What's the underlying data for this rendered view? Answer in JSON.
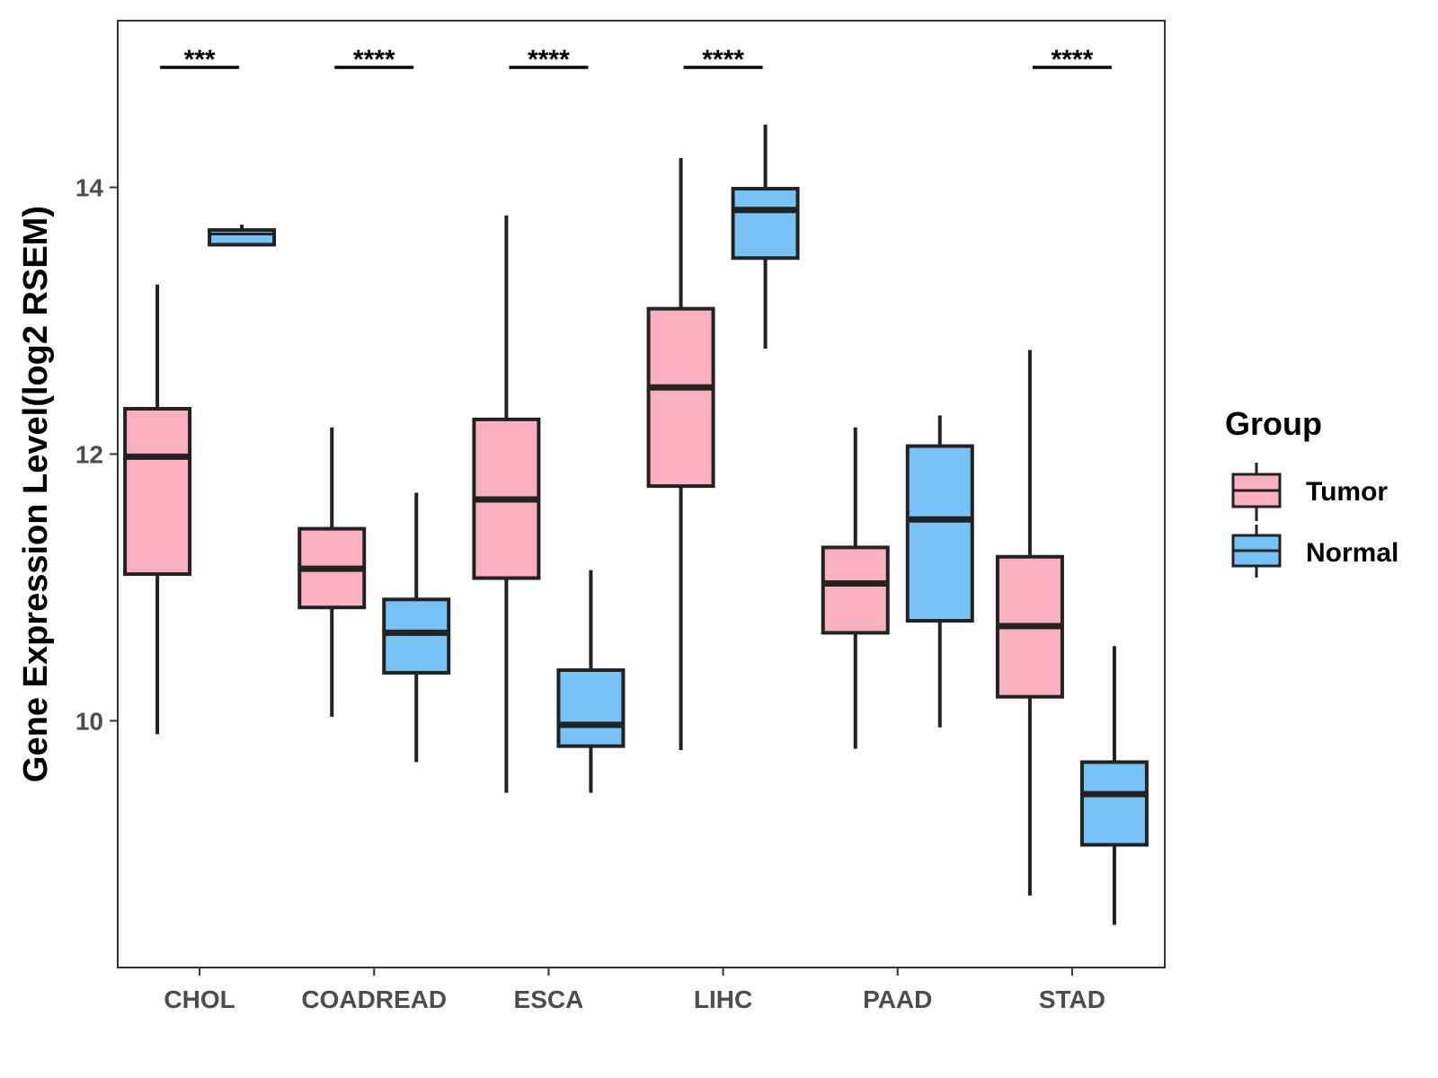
{
  "chart_data": {
    "type": "boxplot",
    "title": "",
    "xlabel": "",
    "ylabel": "Gene Expression Level(log2 RSEM)",
    "ylim": [
      8.15,
      15.25
    ],
    "yticks": [
      10,
      12,
      14
    ],
    "categories": [
      "CHOL",
      "COADREAD",
      "ESCA",
      "LIHC",
      "PAAD",
      "STAD"
    ],
    "legend": {
      "title": "Group",
      "position": "right",
      "entries": [
        "Tumor",
        "Normal"
      ]
    },
    "colors": {
      "Tumor": "#fbb0c2",
      "Normal": "#77c2f7",
      "outline": "#222222"
    },
    "series": [
      {
        "name": "Tumor",
        "boxes": [
          {
            "category": "CHOL",
            "whisker_low": 9.9,
            "q1": 11.1,
            "median": 11.98,
            "q3": 12.34,
            "whisker_high": 13.27
          },
          {
            "category": "COADREAD",
            "whisker_low": 10.03,
            "q1": 10.85,
            "median": 11.14,
            "q3": 11.44,
            "whisker_high": 12.2
          },
          {
            "category": "ESCA",
            "whisker_low": 9.46,
            "q1": 11.07,
            "median": 11.66,
            "q3": 12.26,
            "whisker_high": 13.79
          },
          {
            "category": "LIHC",
            "whisker_low": 9.78,
            "q1": 11.76,
            "median": 12.5,
            "q3": 13.09,
            "whisker_high": 14.22
          },
          {
            "category": "PAAD",
            "whisker_low": 9.79,
            "q1": 10.66,
            "median": 11.03,
            "q3": 11.3,
            "whisker_high": 12.2
          },
          {
            "category": "STAD",
            "whisker_low": 8.69,
            "q1": 10.18,
            "median": 10.71,
            "q3": 11.23,
            "whisker_high": 12.78
          }
        ]
      },
      {
        "name": "Normal",
        "boxes": [
          {
            "category": "CHOL",
            "whisker_low": 13.57,
            "q1": 13.57,
            "median": 13.65,
            "q3": 13.68,
            "whisker_high": 13.72
          },
          {
            "category": "COADREAD",
            "whisker_low": 9.69,
            "q1": 10.36,
            "median": 10.66,
            "q3": 10.91,
            "whisker_high": 11.71
          },
          {
            "category": "ESCA",
            "whisker_low": 9.46,
            "q1": 9.81,
            "median": 9.97,
            "q3": 10.38,
            "whisker_high": 11.13
          },
          {
            "category": "LIHC",
            "whisker_low": 12.79,
            "q1": 13.47,
            "median": 13.83,
            "q3": 13.99,
            "whisker_high": 14.47
          },
          {
            "category": "PAAD",
            "whisker_low": 9.95,
            "q1": 10.75,
            "median": 11.51,
            "q3": 12.06,
            "whisker_high": 12.29
          },
          {
            "category": "STAD",
            "whisker_low": 8.47,
            "q1": 9.07,
            "median": 9.45,
            "q3": 9.69,
            "whisker_high": 10.56
          }
        ]
      }
    ],
    "significance": [
      {
        "category": "CHOL",
        "label": "***"
      },
      {
        "category": "COADREAD",
        "label": "****"
      },
      {
        "category": "ESCA",
        "label": "****"
      },
      {
        "category": "LIHC",
        "label": "****"
      },
      {
        "category": "PAAD",
        "label": ""
      },
      {
        "category": "STAD",
        "label": "****"
      }
    ]
  }
}
